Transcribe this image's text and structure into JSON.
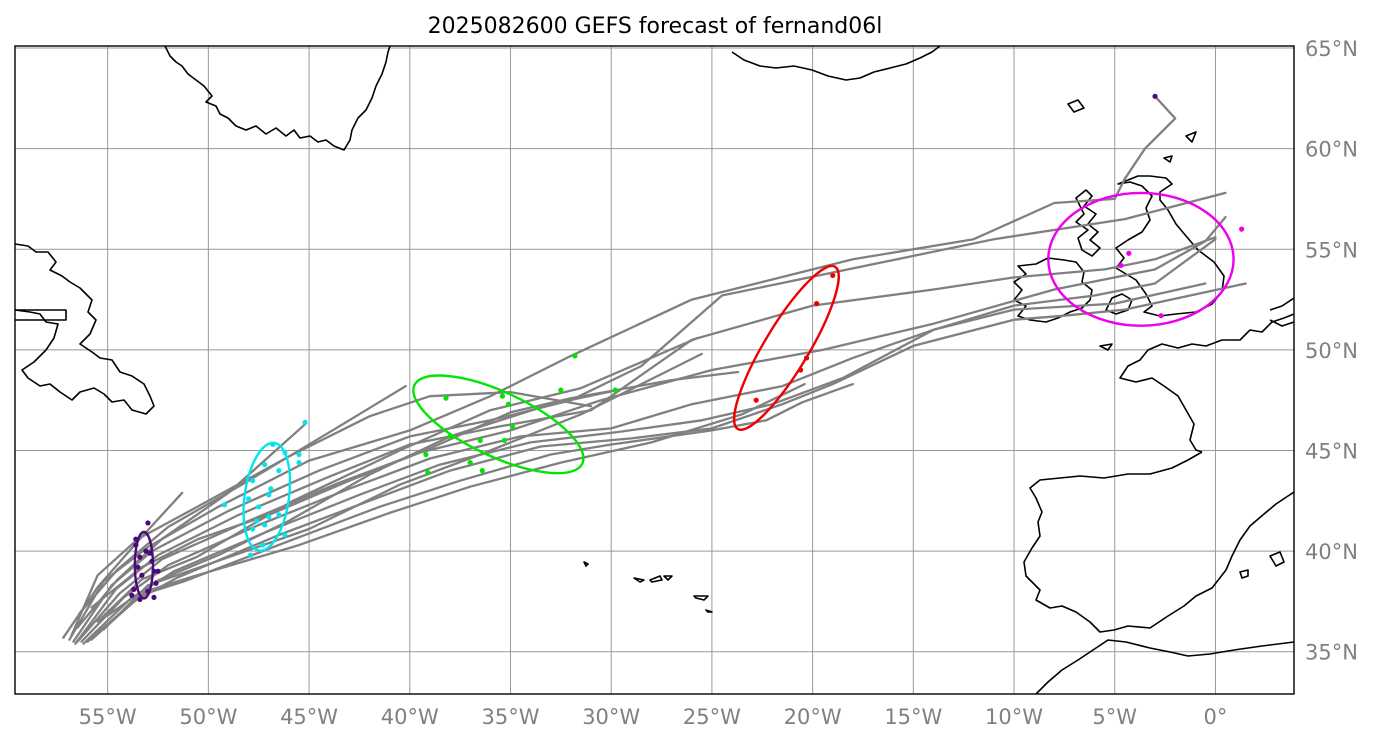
{
  "chart_data": {
    "type": "map",
    "title": "2025082600 GEFS forecast of fernand06l",
    "extent": {
      "lon": [
        -59.6,
        3.9
      ],
      "lat": [
        32.9,
        65.1
      ]
    },
    "lon_ticks": [
      {
        "value": -55,
        "label": "55°W"
      },
      {
        "value": -50,
        "label": "50°W"
      },
      {
        "value": -45,
        "label": "45°W"
      },
      {
        "value": -40,
        "label": "40°W"
      },
      {
        "value": -35,
        "label": "35°W"
      },
      {
        "value": -30,
        "label": "30°W"
      },
      {
        "value": -25,
        "label": "25°W"
      },
      {
        "value": -20,
        "label": "20°W"
      },
      {
        "value": -15,
        "label": "15°W"
      },
      {
        "value": -10,
        "label": "10°W"
      },
      {
        "value": -5,
        "label": "5°W"
      },
      {
        "value": 0,
        "label": "0°"
      }
    ],
    "lat_ticks": [
      {
        "value": 35,
        "label": "35°N"
      },
      {
        "value": 40,
        "label": "40°N"
      },
      {
        "value": 45,
        "label": "45°N"
      },
      {
        "value": 50,
        "label": "50°N"
      },
      {
        "value": 55,
        "label": "55°N"
      },
      {
        "value": 60,
        "label": "60°N"
      },
      {
        "value": 65,
        "label": "65°N"
      }
    ],
    "track_color": "#808080",
    "tracks": [
      [
        [
          -56.8,
          35.8
        ],
        [
          -55.5,
          38.8
        ],
        [
          -53.5,
          40.6
        ],
        [
          -50,
          42.5
        ],
        [
          -46,
          44.7
        ],
        [
          -42,
          46.7
        ],
        [
          -39,
          47.7
        ],
        [
          -35,
          47.9
        ],
        [
          -31,
          47.2
        ]
      ],
      [
        [
          -56.9,
          35.6
        ],
        [
          -55.2,
          38.5
        ],
        [
          -53,
          40.2
        ],
        [
          -49.5,
          42.2
        ],
        [
          -45,
          44.5
        ],
        [
          -40,
          46
        ],
        [
          -36,
          47.7
        ],
        [
          -32,
          49.7
        ],
        [
          -26,
          52.5
        ],
        [
          -18,
          54.5
        ],
        [
          -12,
          55.5
        ],
        [
          -8,
          57.3
        ],
        [
          -5,
          57.5
        ],
        [
          -4.5,
          58.5
        ],
        [
          -3.5,
          60
        ],
        [
          -2,
          61.5
        ],
        [
          -3,
          62.6
        ]
      ],
      [
        [
          -56.7,
          35.5
        ],
        [
          -54.8,
          38.3
        ],
        [
          -52.8,
          40
        ],
        [
          -49,
          42
        ],
        [
          -44.5,
          44
        ],
        [
          -40,
          45.7
        ],
        [
          -36,
          46.5
        ],
        [
          -32,
          47.5
        ],
        [
          -28.5,
          49.2
        ],
        [
          -24.5,
          52.7
        ],
        [
          -11,
          55.5
        ],
        [
          -4.5,
          56.5
        ],
        [
          0.5,
          57.8
        ]
      ],
      [
        [
          -56.6,
          35.4
        ],
        [
          -54.6,
          38.1
        ],
        [
          -52.5,
          39.8
        ],
        [
          -48.5,
          41.8
        ],
        [
          -44,
          43.7
        ],
        [
          -40,
          45.3
        ],
        [
          -35.5,
          46.2
        ],
        [
          -31,
          47
        ],
        [
          -26,
          50.5
        ],
        [
          -20,
          52.2
        ],
        [
          -14,
          53
        ],
        [
          -10,
          53.6
        ],
        [
          -5.5,
          54
        ],
        [
          -3,
          54.5
        ],
        [
          0,
          55.6
        ]
      ],
      [
        [
          -56.5,
          35.5
        ],
        [
          -54.4,
          37.9
        ],
        [
          -52.3,
          39.6
        ],
        [
          -48,
          41.5
        ],
        [
          -43.5,
          43.4
        ],
        [
          -39.5,
          44.9
        ],
        [
          -35,
          46
        ],
        [
          -30.5,
          47.5
        ],
        [
          -25,
          49
        ],
        [
          -19.5,
          50
        ],
        [
          -14,
          51.3
        ],
        [
          -8,
          53
        ],
        [
          -3,
          54
        ],
        [
          -0.5,
          55.4
        ],
        [
          0.5,
          56.6
        ]
      ],
      [
        [
          -56.3,
          35.5
        ],
        [
          -54.2,
          37.7
        ],
        [
          -52,
          39.3
        ],
        [
          -47.5,
          41.3
        ],
        [
          -43,
          43.1
        ],
        [
          -39,
          44.6
        ],
        [
          -34.5,
          45.7
        ],
        [
          -30,
          46.1
        ],
        [
          -26,
          47.3
        ],
        [
          -21.5,
          48.2
        ],
        [
          -18,
          49.6
        ],
        [
          -14,
          51
        ],
        [
          -10,
          52.2
        ],
        [
          -6,
          52.7
        ],
        [
          -3,
          53.3
        ],
        [
          0,
          55.5
        ]
      ],
      [
        [
          -56.2,
          35.4
        ],
        [
          -53.9,
          37.6
        ],
        [
          -51.7,
          39
        ],
        [
          -47,
          41
        ],
        [
          -42.5,
          42.8
        ],
        [
          -38.5,
          44.3
        ],
        [
          -34,
          45.4
        ],
        [
          -29.8,
          45.9
        ],
        [
          -25.5,
          46.5
        ],
        [
          -22,
          47.3
        ],
        [
          -18.5,
          48.6
        ],
        [
          -14,
          51
        ],
        [
          -10,
          52
        ],
        [
          -5,
          52.3
        ],
        [
          -0.5,
          53.3
        ]
      ],
      [
        [
          -56,
          35.5
        ],
        [
          -53.7,
          37.5
        ],
        [
          -51.5,
          38.7
        ],
        [
          -46.5,
          40.8
        ],
        [
          -42,
          42.5
        ],
        [
          -38,
          44
        ],
        [
          -33.5,
          45.2
        ],
        [
          -29,
          45.6
        ],
        [
          -25,
          46.1
        ],
        [
          -21.5,
          47.3
        ],
        [
          -19,
          48.3
        ],
        [
          -15,
          50.2
        ],
        [
          -10,
          51.5
        ],
        [
          -7.5,
          51.7
        ],
        [
          -4.5,
          52
        ],
        [
          1.5,
          53.3
        ]
      ],
      [
        [
          -55.8,
          35.6
        ],
        [
          -53.4,
          37.8
        ],
        [
          -51.2,
          38.5
        ],
        [
          -46,
          40.5
        ],
        [
          -41.5,
          42.2
        ],
        [
          -37.5,
          43.5
        ],
        [
          -33,
          44.8
        ],
        [
          -30,
          45.3
        ],
        [
          -25,
          46
        ],
        [
          -22.3,
          46.5
        ],
        [
          -20.5,
          47.4
        ],
        [
          -18,
          48.3
        ]
      ],
      [
        [
          -55.6,
          35.8
        ],
        [
          -53.1,
          38
        ],
        [
          -50.9,
          38.7
        ],
        [
          -45.5,
          40.3
        ],
        [
          -41,
          41.9
        ],
        [
          -37,
          43.2
        ],
        [
          -32.5,
          44.4
        ],
        [
          -28,
          45.4
        ],
        [
          -23.5,
          46.8
        ],
        [
          -20.4,
          48.3
        ]
      ],
      [
        [
          -55.2,
          36.1
        ],
        [
          -53,
          38.3
        ],
        [
          -50.7,
          39.1
        ],
        [
          -45,
          41.1
        ],
        [
          -40.5,
          43.3
        ],
        [
          -36.5,
          44.8
        ],
        [
          -31.5,
          46.8
        ],
        [
          -25.5,
          49.8
        ]
      ],
      [
        [
          -55.5,
          36.5
        ],
        [
          -53.3,
          38.6
        ],
        [
          -50.6,
          39.7
        ],
        [
          -45.8,
          42.5
        ],
        [
          -40.5,
          45
        ],
        [
          -36,
          47
        ],
        [
          -31.5,
          48.1
        ],
        [
          -25.7,
          50.6
        ]
      ],
      [
        [
          -56.4,
          36.9
        ],
        [
          -54.5,
          39.1
        ],
        [
          -52,
          41.2
        ],
        [
          -48,
          43.5
        ],
        [
          -43.5,
          46.2
        ],
        [
          -40.2,
          48.2
        ]
      ],
      [
        [
          -57.2,
          35.7
        ],
        [
          -55.5,
          38.2
        ],
        [
          -53.5,
          40.5
        ],
        [
          -51.3,
          42.9
        ]
      ],
      [
        [
          -56.5,
          36.2
        ],
        [
          -54.5,
          38.6
        ],
        [
          -52.3,
          40.6
        ],
        [
          -49,
          42.9
        ],
        [
          -45.2,
          46.3
        ]
      ],
      [
        [
          -55.8,
          37.2
        ],
        [
          -53.3,
          39.2
        ],
        [
          -50.5,
          40.6
        ],
        [
          -47,
          41.8
        ],
        [
          -43,
          43.5
        ],
        [
          -39,
          45.1
        ],
        [
          -35,
          46.9
        ],
        [
          -32,
          47.6
        ],
        [
          -27,
          48.5
        ],
        [
          -23.7,
          48.9
        ]
      ],
      [
        [
          -55,
          36.8
        ],
        [
          -52.6,
          38.5
        ],
        [
          -49.5,
          39.8
        ],
        [
          -46,
          41.5
        ],
        [
          -42,
          43.8
        ],
        [
          -38,
          45.7
        ],
        [
          -33,
          47.3
        ],
        [
          -29.7,
          48
        ]
      ]
    ],
    "ellipses": [
      {
        "color": "#4b0a7a",
        "center": [
          -53.2,
          39.3
        ],
        "semi_axes": [
          0.45,
          1.65
        ],
        "tilt_deg": 0
      },
      {
        "color": "#00e5ee",
        "center": [
          -47.1,
          42.7
        ],
        "semi_axes": [
          1.1,
          2.7
        ],
        "tilt_deg": 8
      },
      {
        "color": "#00e600",
        "center": [
          -35.6,
          46.3
        ],
        "semi_axes": [
          4.6,
          1.6
        ],
        "tilt_deg": 25
      },
      {
        "color": "#ee0000",
        "center": [
          -21.3,
          50.1
        ],
        "semi_axes": [
          1.1,
          4.7
        ],
        "tilt_deg": 31
      },
      {
        "color": "#ee00ee",
        "center": [
          -3.7,
          54.5
        ],
        "semi_axes": [
          4.6,
          3.3
        ],
        "tilt_deg": 0
      }
    ],
    "points": [
      {
        "color": "#4b0a7a",
        "coords": [
          [
            -53,
            41.4
          ],
          [
            -53.6,
            40.3
          ],
          [
            -53.1,
            40
          ],
          [
            -53.4,
            39.7
          ],
          [
            -52.8,
            39.5
          ],
          [
            -53.5,
            39.2
          ],
          [
            -52.7,
            39
          ],
          [
            -53.3,
            38.8
          ],
          [
            -52.6,
            38.4
          ],
          [
            -53.7,
            38.1
          ],
          [
            -53,
            38
          ],
          [
            -52.7,
            37.7
          ],
          [
            -53.8,
            37.8
          ],
          [
            -53.4,
            37.6
          ],
          [
            -52.9,
            39.9
          ],
          [
            -53.6,
            40.6
          ],
          [
            -52.5,
            39
          ]
        ]
      },
      {
        "color": "#00e5ee",
        "coords": [
          [
            -45.2,
            46.4
          ],
          [
            -46.8,
            45.3
          ],
          [
            -46.2,
            44.9
          ],
          [
            -45.5,
            44.8
          ],
          [
            -47.2,
            44.3
          ],
          [
            -46.5,
            44
          ],
          [
            -47.8,
            43.5
          ],
          [
            -46.9,
            43.1
          ],
          [
            -47,
            42.8
          ],
          [
            -48,
            42.6
          ],
          [
            -47.5,
            42.2
          ],
          [
            -49.2,
            42.3
          ],
          [
            -47,
            41.7
          ],
          [
            -47.6,
            41.5
          ],
          [
            -47.2,
            41.3
          ],
          [
            -46.5,
            41.8
          ],
          [
            -47.8,
            41.1
          ],
          [
            -46.2,
            40.8
          ],
          [
            -47.3,
            40.3
          ],
          [
            -47.9,
            39.8
          ],
          [
            -45.5,
            44.4
          ]
        ]
      },
      {
        "color": "#00e600",
        "coords": [
          [
            -31.8,
            49.7
          ],
          [
            -35.4,
            47.7
          ],
          [
            -38.2,
            47.6
          ],
          [
            -32.5,
            48
          ],
          [
            -29.8,
            48
          ],
          [
            -35.1,
            47.3
          ],
          [
            -34.9,
            46.2
          ],
          [
            -38,
            45.7
          ],
          [
            -36.5,
            45.5
          ],
          [
            -35.3,
            45.5
          ],
          [
            -39.2,
            44.8
          ],
          [
            -37,
            44.4
          ],
          [
            -36.4,
            44
          ],
          [
            -39.1,
            43.9
          ]
        ]
      },
      {
        "color": "#ee0000",
        "coords": [
          [
            -19,
            53.7
          ],
          [
            -19.8,
            52.3
          ],
          [
            -20.3,
            49.6
          ],
          [
            -20.6,
            49
          ],
          [
            -22.8,
            47.5
          ]
        ]
      },
      {
        "color": "#ee00ee",
        "coords": [
          [
            1.3,
            56
          ],
          [
            -4.3,
            54.8
          ],
          [
            -4.7,
            54.2
          ],
          [
            -2.7,
            51.7
          ]
        ]
      },
      {
        "color": "#4b0a7a",
        "coords": [
          [
            -3,
            62.6
          ]
        ]
      }
    ]
  }
}
